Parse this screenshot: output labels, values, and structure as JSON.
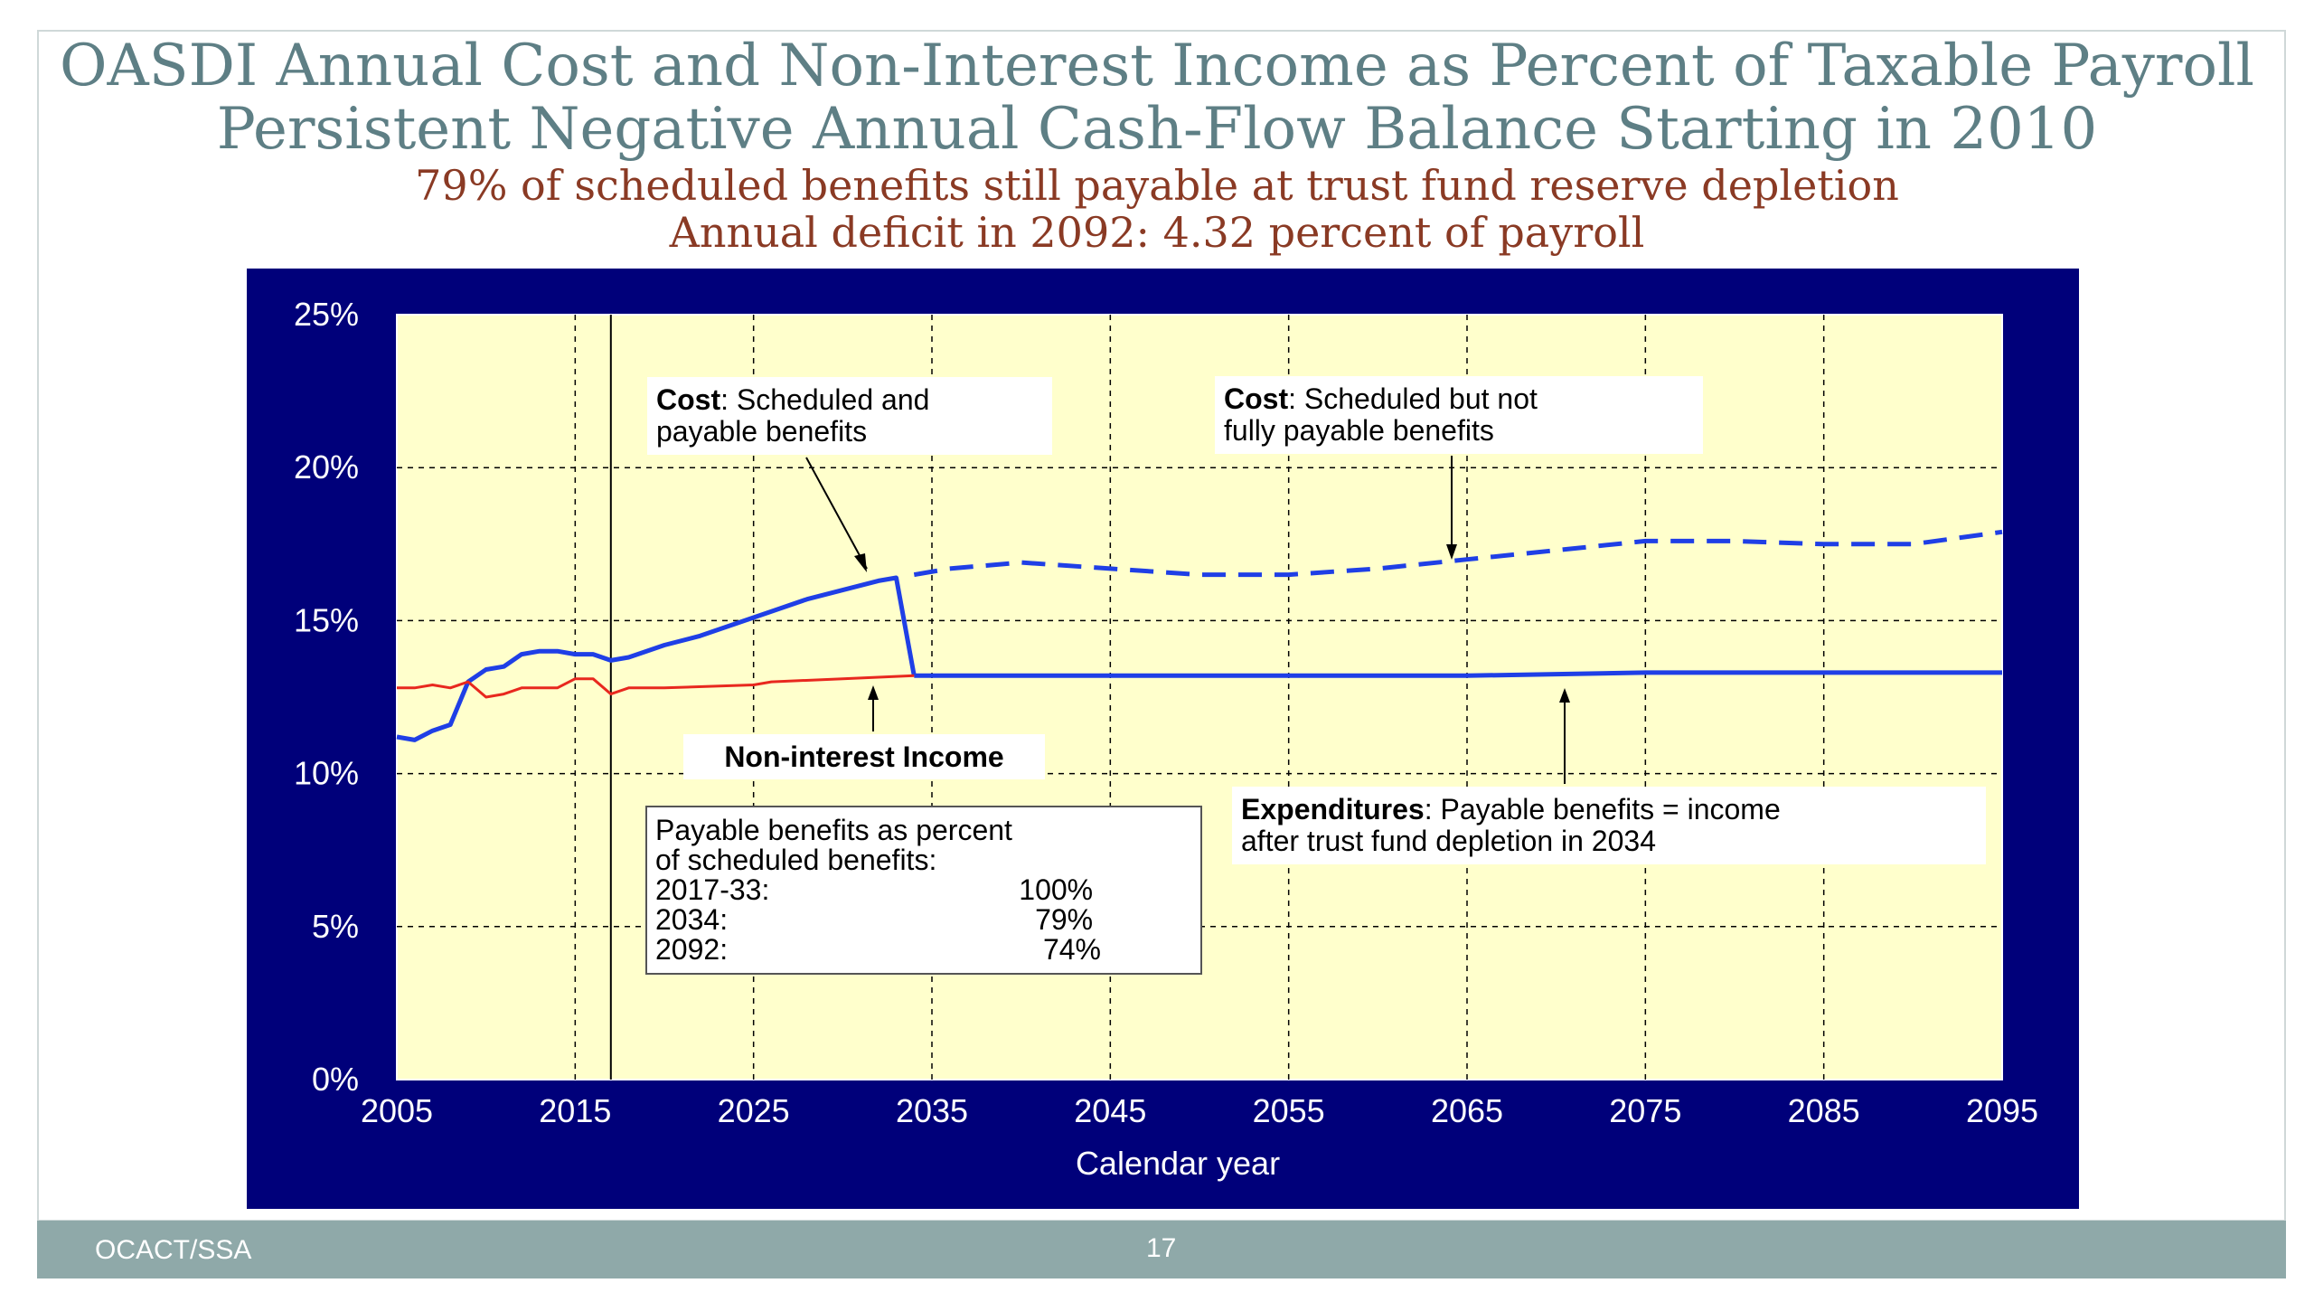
{
  "slide": {
    "title_line1": "OASDI Annual Cost and Non-Interest Income as Percent of Taxable Payroll",
    "title_line2": "Persistent Negative Annual Cash-Flow Balance Starting in 2010",
    "subtitle_line1": "79% of scheduled benefits still payable at trust fund reserve depletion",
    "subtitle_line2": "Annual deficit in 2092: 4.32 percent of payroll",
    "footer_left": "OCACT/SSA",
    "page_number": "17"
  },
  "colors": {
    "panel_bg": "#00007a",
    "plot_bg": "#ffffcc",
    "cost_line": "#1f3fe6",
    "income_line": "#e8281e",
    "title": "#5e7f85",
    "subtitle": "#8a3a24",
    "footer": "#8fa9a9"
  },
  "chart_data": {
    "type": "line",
    "xlabel": "Calendar year",
    "ylabel": "",
    "xlim": [
      2005,
      2095
    ],
    "ylim": [
      0,
      25
    ],
    "x_ticks": [
      "2005",
      "2015",
      "2025",
      "2035",
      "2045",
      "2055",
      "2065",
      "2075",
      "2085",
      "2095"
    ],
    "y_ticks": [
      "0%",
      "5%",
      "10%",
      "15%",
      "20%",
      "25%"
    ],
    "grid": "dashed",
    "reference_line_year": 2017,
    "series": [
      {
        "key": "cost_scheduled_payable",
        "style": "solid",
        "points": [
          [
            2005,
            11.2
          ],
          [
            2006,
            11.1
          ],
          [
            2007,
            11.4
          ],
          [
            2008,
            11.6
          ],
          [
            2009,
            13.0
          ],
          [
            2010,
            13.4
          ],
          [
            2011,
            13.5
          ],
          [
            2012,
            13.9
          ],
          [
            2013,
            14.0
          ],
          [
            2014,
            14.0
          ],
          [
            2015,
            13.9
          ],
          [
            2016,
            13.9
          ],
          [
            2017,
            13.7
          ],
          [
            2018,
            13.8
          ],
          [
            2019,
            14.0
          ],
          [
            2020,
            14.2
          ],
          [
            2022,
            14.5
          ],
          [
            2024,
            14.9
          ],
          [
            2026,
            15.3
          ],
          [
            2028,
            15.7
          ],
          [
            2030,
            16.0
          ],
          [
            2032,
            16.3
          ],
          [
            2033,
            16.4
          ],
          [
            2034,
            13.2
          ]
        ]
      },
      {
        "key": "cost_scheduled_not_payable",
        "style": "dashed",
        "points": [
          [
            2034,
            16.5
          ],
          [
            2036,
            16.7
          ],
          [
            2040,
            16.9
          ],
          [
            2045,
            16.7
          ],
          [
            2050,
            16.5
          ],
          [
            2055,
            16.5
          ],
          [
            2060,
            16.7
          ],
          [
            2065,
            17.0
          ],
          [
            2070,
            17.3
          ],
          [
            2075,
            17.6
          ],
          [
            2080,
            17.6
          ],
          [
            2085,
            17.5
          ],
          [
            2090,
            17.5
          ],
          [
            2095,
            17.9
          ]
        ]
      },
      {
        "key": "expenditures_payable",
        "style": "solid",
        "points": [
          [
            2034,
            13.2
          ],
          [
            2045,
            13.2
          ],
          [
            2055,
            13.2
          ],
          [
            2065,
            13.2
          ],
          [
            2075,
            13.3
          ],
          [
            2085,
            13.3
          ],
          [
            2095,
            13.3
          ]
        ]
      },
      {
        "key": "non_interest_income",
        "style": "solid",
        "points": [
          [
            2005,
            12.8
          ],
          [
            2006,
            12.8
          ],
          [
            2007,
            12.9
          ],
          [
            2008,
            12.8
          ],
          [
            2009,
            13.0
          ],
          [
            2010,
            12.5
          ],
          [
            2011,
            12.6
          ],
          [
            2012,
            12.8
          ],
          [
            2013,
            12.8
          ],
          [
            2014,
            12.8
          ],
          [
            2015,
            13.1
          ],
          [
            2016,
            13.1
          ],
          [
            2017,
            12.6
          ],
          [
            2018,
            12.8
          ],
          [
            2020,
            12.8
          ],
          [
            2025,
            12.9
          ],
          [
            2026,
            13.0
          ],
          [
            2030,
            13.1
          ],
          [
            2034,
            13.2
          ]
        ]
      }
    ],
    "annotations": {
      "cost_payable_bold": "Cost",
      "cost_payable_text1": ": Scheduled and",
      "cost_payable_text2": "payable benefits",
      "cost_not_payable_bold": "Cost",
      "cost_not_payable_text1": ": Scheduled but not",
      "cost_not_payable_text2": "fully payable benefits",
      "income_label": "Non-interest Income",
      "expend_bold": "Expenditures",
      "expend_text1": ": Payable benefits = income",
      "expend_text2": "after trust fund depletion in 2034",
      "payable_box": {
        "line1": "Payable benefits as percent",
        "line2": "of scheduled benefits:",
        "rows": [
          {
            "period": "2017-33:",
            "percent": "100%"
          },
          {
            "period": "2034:",
            "percent": "79%"
          },
          {
            "period": "2092:",
            "percent": "74%"
          }
        ]
      }
    }
  }
}
